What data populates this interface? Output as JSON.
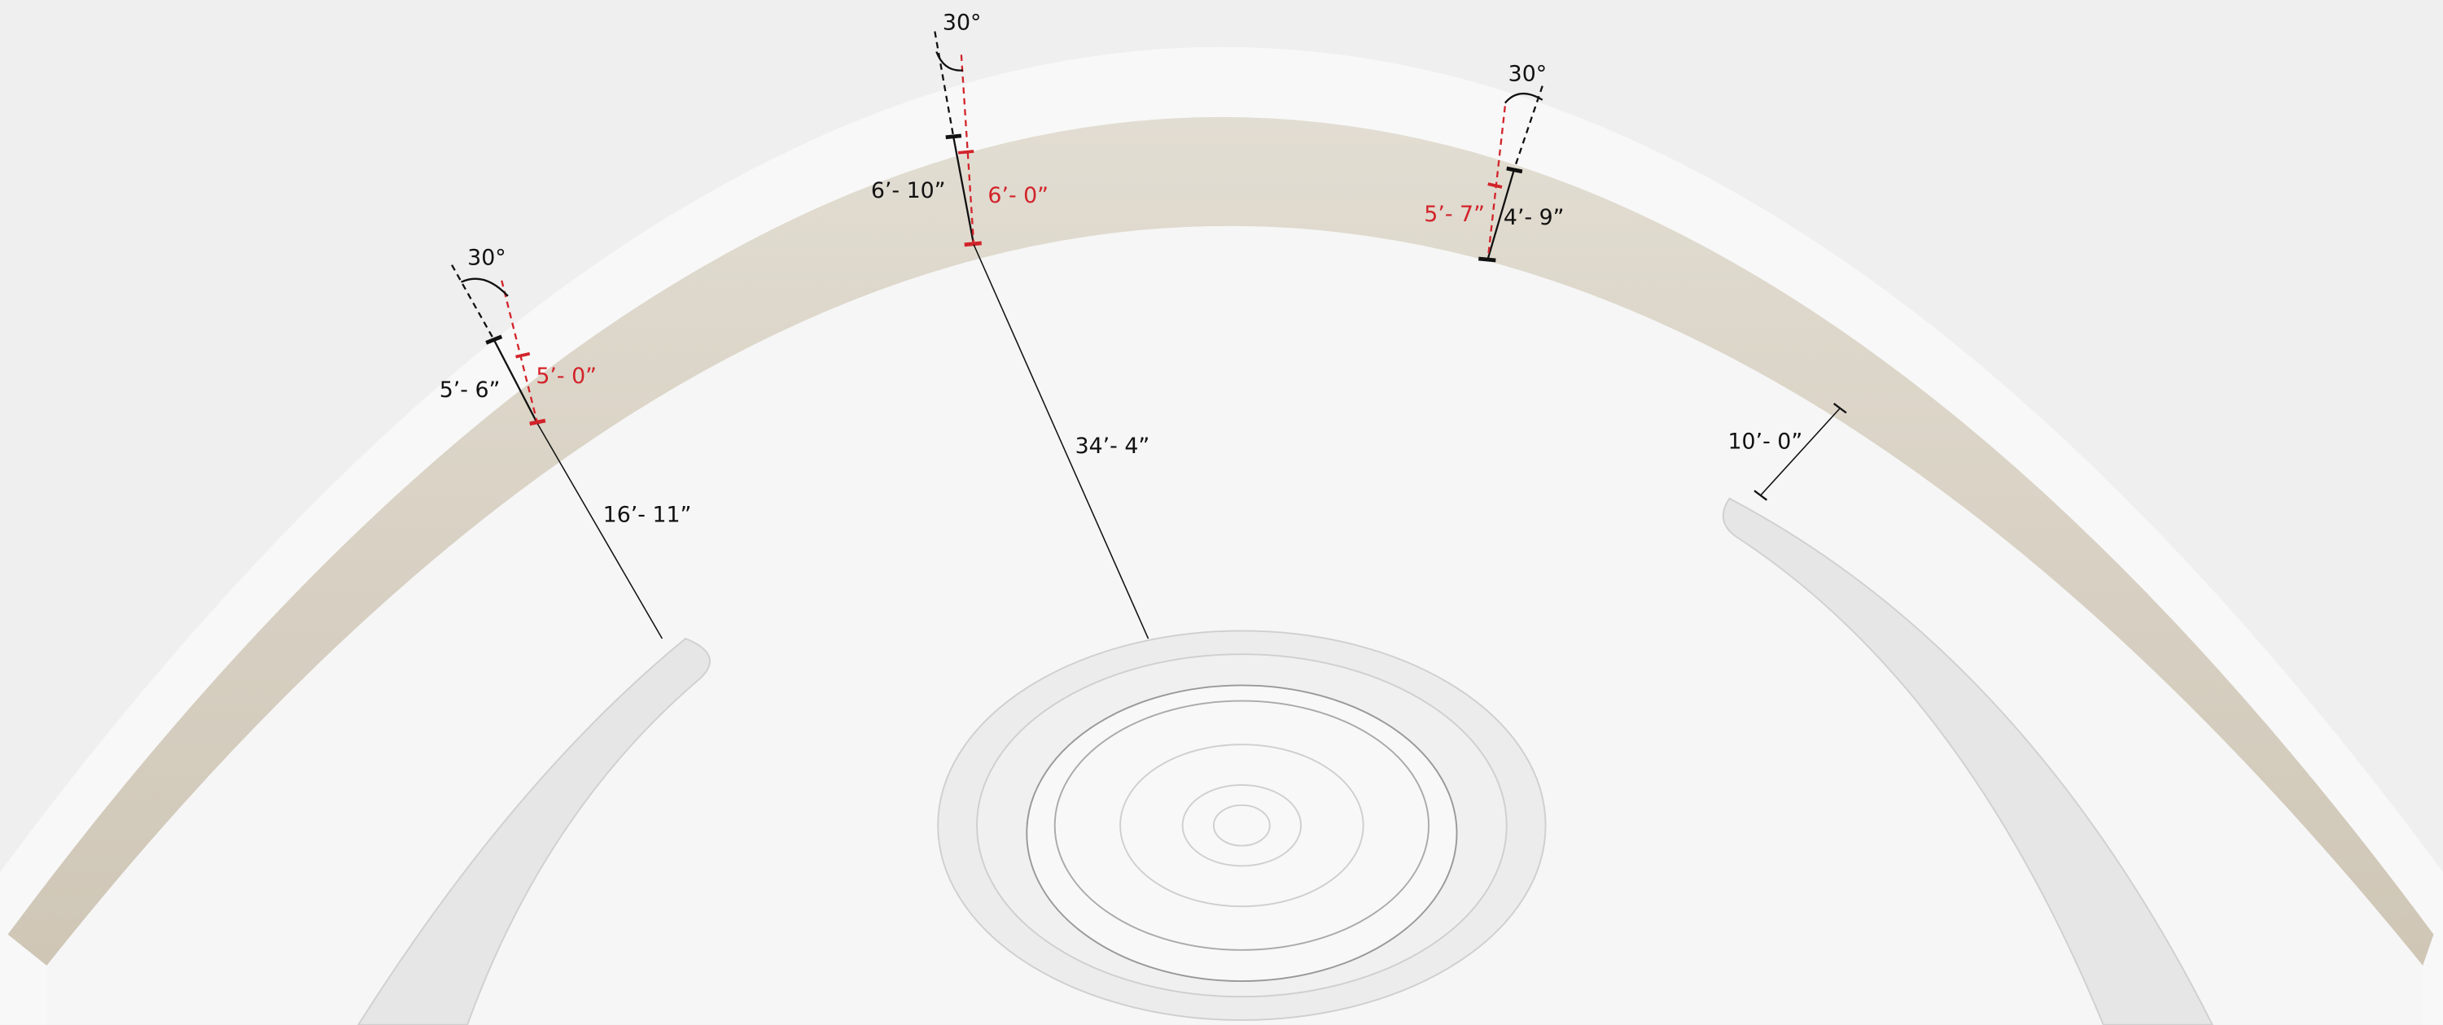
{
  "angles": [
    "30°",
    "30°",
    "30°"
  ],
  "wall_heights": [
    {
      "total": "5’- 6”",
      "inner": "5’- 0”"
    },
    {
      "total": "6’- 10”",
      "inner": "6’- 0”"
    },
    {
      "total": "4’- 9”",
      "inner": "5’- 7”"
    }
  ],
  "distances": [
    "16’- 11”",
    "34’- 4”",
    "10’- 0”"
  ]
}
